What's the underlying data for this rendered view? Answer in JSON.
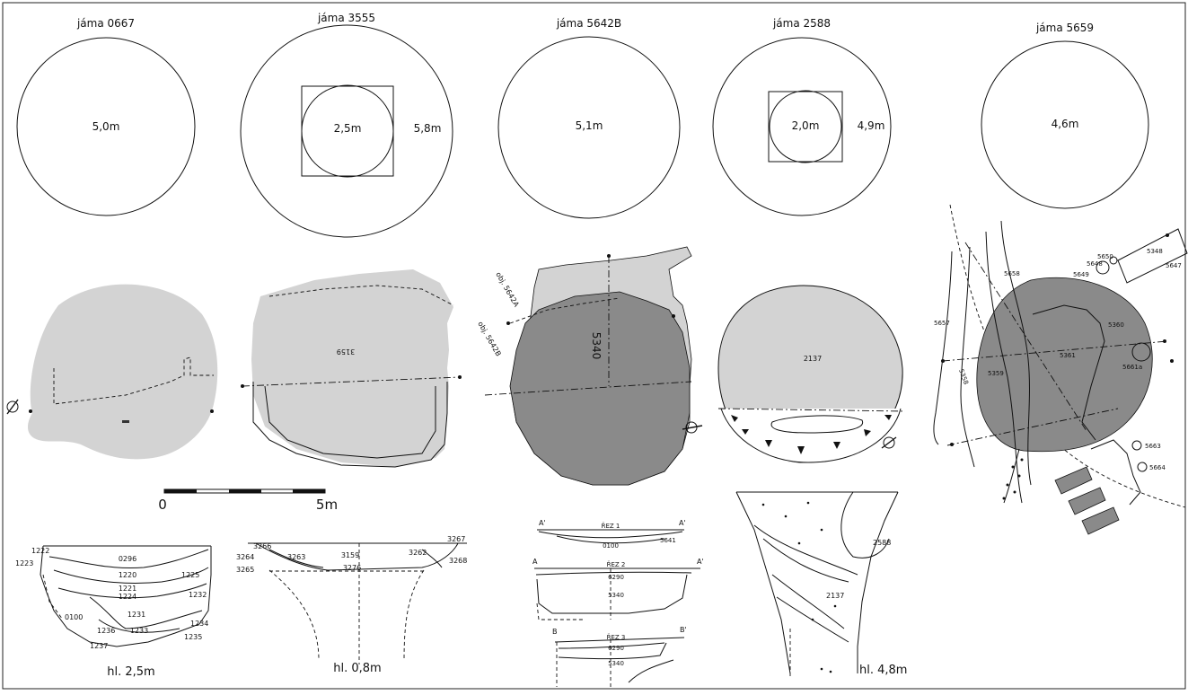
{
  "pits": [
    {
      "title": "jáma 0667",
      "diameter": "5,0m",
      "depth": "hl. 2,5m"
    },
    {
      "title": "jáma 3555",
      "diameter": "5,8m",
      "inner": "2,5m",
      "depth": "hl. 0,8m"
    },
    {
      "title": "jáma 5642B",
      "diameter": "5,1m"
    },
    {
      "title": "jáma 2588",
      "diameter": "4,9m",
      "inner": "2,0m",
      "depth": "hl. 4,8m"
    },
    {
      "title": "jáma 5659",
      "diameter": "4,6m"
    }
  ],
  "scale": {
    "start": "0",
    "end": "5m"
  },
  "plans": {
    "p2": "3159",
    "p3": {
      "obj_a": "obj. 5642A",
      "obj_b": "obj. 5642B",
      "fill": "5340"
    },
    "p4": "2137",
    "p5": [
      "5658",
      "5657",
      "5358",
      "5359",
      "5361",
      "5360",
      "5650",
      "5648",
      "5649",
      "5348",
      "5647",
      "5661a",
      "5663",
      "5664"
    ]
  },
  "sections": {
    "s1": [
      "1222",
      "1223",
      "0296",
      "1220",
      "1225",
      "1221",
      "1224",
      "1232",
      "0100",
      "1231",
      "1234",
      "1236",
      "1233",
      "1235",
      "1237"
    ],
    "s2": [
      "3266",
      "3267",
      "3264",
      "3263",
      "3265",
      "3159",
      "3262",
      "3268",
      "3276"
    ],
    "s3": {
      "cut1": {
        "label": "ŘEZ 1",
        "left": "A'",
        "right": "A'",
        "layers": [
          "0100",
          "5641"
        ]
      },
      "cut2": {
        "label": "ŘEZ 2",
        "left": "A",
        "right": "A'",
        "layers": [
          "6290",
          "5340"
        ]
      },
      "cut3": {
        "label": "ŘEZ 3",
        "left": "B",
        "right": "B'",
        "layers": [
          "6290",
          "5340"
        ]
      }
    },
    "s4": [
      "2588",
      "2137"
    ]
  },
  "colors": {
    "fill_light": "#d3d3d3",
    "fill_dark": "#8a8a8a",
    "line": "#111111"
  }
}
